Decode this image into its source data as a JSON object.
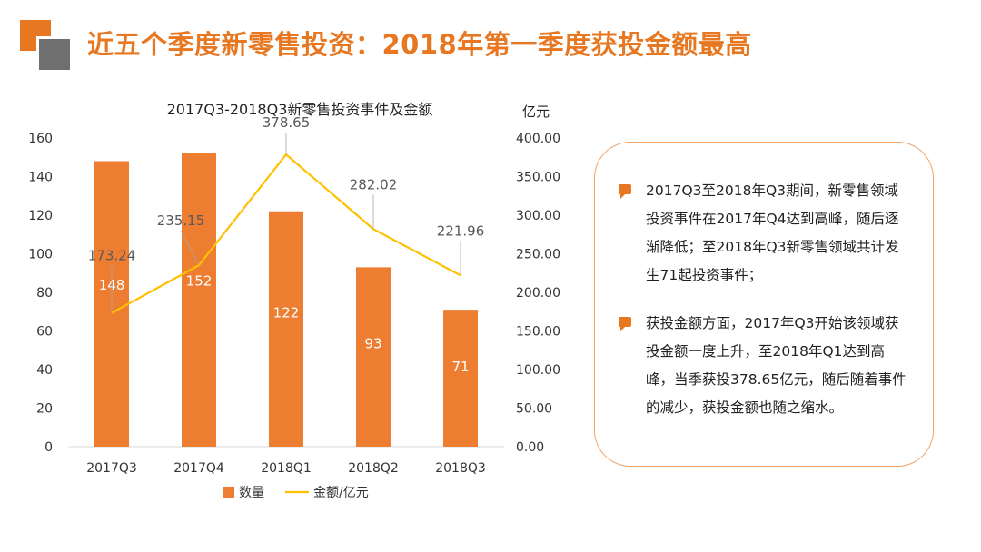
{
  "header": {
    "title": "近五个季度新零售投资：2018年第一季度获投金额最高"
  },
  "chart_data": {
    "type": "bar",
    "title": "2017Q3-2018Q3新零售投资事件及金额",
    "categories": [
      "2017Q3",
      "2017Q4",
      "2018Q1",
      "2018Q2",
      "2018Q3"
    ],
    "series": [
      {
        "name": "数量",
        "type": "bar",
        "axis": "left",
        "color": "#ed7d31",
        "values": [
          148,
          152,
          122,
          93,
          71
        ]
      },
      {
        "name": "金额/亿元",
        "type": "line",
        "axis": "right",
        "color": "#ffc000",
        "values": [
          173.24,
          235.15,
          378.65,
          282.02,
          221.96
        ]
      }
    ],
    "y_left": {
      "min": 0,
      "max": 160,
      "step": 20,
      "ticks": [
        "0",
        "20",
        "40",
        "60",
        "80",
        "100",
        "120",
        "140",
        "160"
      ]
    },
    "y_right": {
      "min": 0,
      "max": 400,
      "step": 50,
      "unit": "亿元",
      "ticks": [
        "0.00",
        "50.00",
        "100.00",
        "150.00",
        "200.00",
        "250.00",
        "300.00",
        "350.00",
        "400.00"
      ]
    },
    "bar_labels": [
      "148",
      "152",
      "122",
      "93",
      "71"
    ],
    "line_labels": [
      "173.24",
      "235.15",
      "378.65",
      "282.02",
      "221.96"
    ],
    "legend": [
      {
        "name": "数量",
        "shape": "square",
        "color": "#ed7d31"
      },
      {
        "name": "金额/亿元",
        "shape": "line",
        "color": "#ffc000"
      }
    ],
    "legend_position": "bottom",
    "grid": false
  },
  "summary": {
    "points": [
      "2017Q3至2018年Q3期间，新零售领域投资事件在2017年Q4达到高峰，随后逐渐降低；至2018年Q3新零售领域共计发生71起投资事件；",
      "获投金额方面，2017年Q3开始该领域获投金额一度上升，至2018年Q1达到高峰，当季获投378.65亿元，随后随着事件的减少，获投金额也随之缩水。"
    ]
  },
  "colors": {
    "accent": "#e87722",
    "bar": "#ed7d31",
    "line": "#ffc000",
    "card_border": "#f0a46a"
  }
}
